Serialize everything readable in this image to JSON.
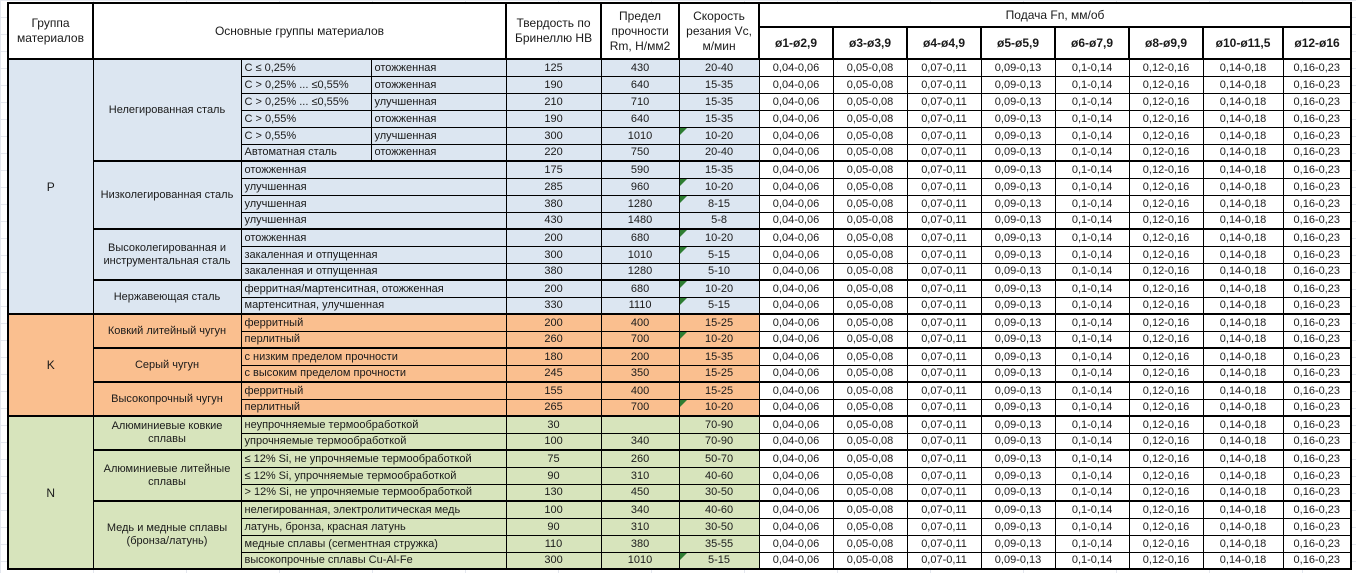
{
  "header": {
    "group": "Группа материалов",
    "material_groups": "Основные группы материалов",
    "hardness": "Твердость по Бринеллю HB",
    "strength": "Предел прочности Rm, Н/мм2",
    "speed": "Скорость резания Vc, м/мин",
    "feed": "Подача Fn, мм/об",
    "feed_columns": [
      "ø1-ø2,9",
      "ø3-ø3,9",
      "ø4-ø4,9",
      "ø5-ø5,9",
      "ø6-ø7,9",
      "ø8-ø9,9",
      "ø10-ø11,5",
      "ø12-ø16"
    ]
  },
  "feed_values": [
    "0,04-0,06",
    "0,05-0,08",
    "0,07-0,11",
    "0,09-0,13",
    "0,1-0,14",
    "0,12-0,16",
    "0,14-0,18",
    "0,16-0,23"
  ],
  "colors": {
    "P": "#DCE6F1",
    "K": "#FABF8F",
    "N": "#D7E4BC",
    "marker": "#2e7d32",
    "border": "#000000"
  },
  "sections": [
    {
      "code": "P",
      "subgroups": [
        {
          "name": "Нелегированная сталь",
          "rows": [
            {
              "c1": "C ≤ 0,25%",
              "c2": "отожженная",
              "hb": "125",
              "rm": "430",
              "vc": "20-40",
              "marker": false
            },
            {
              "c1": "C > 0,25% ... ≤0,55%",
              "c2": "отожженная",
              "hb": "190",
              "rm": "640",
              "vc": "15-35",
              "marker": false
            },
            {
              "c1": "C > 0,25% ... ≤0,55%",
              "c2": "улучшенная",
              "hb": "210",
              "rm": "710",
              "vc": "15-35",
              "marker": false
            },
            {
              "c1": "C > 0,55%",
              "c2": "отожженная",
              "hb": "190",
              "rm": "640",
              "vc": "15-35",
              "marker": false
            },
            {
              "c1": "C > 0,55%",
              "c2": "улучшенная",
              "hb": "300",
              "rm": "1010",
              "vc": "10-20",
              "marker": true
            },
            {
              "c1": "Автоматная сталь",
              "c2": "отожженная",
              "hb": "220",
              "rm": "750",
              "vc": "20-40",
              "marker": false
            }
          ]
        },
        {
          "name": "Низколегированная сталь",
          "rows": [
            {
              "c1": "отожженная",
              "hb": "175",
              "rm": "590",
              "vc": "15-35",
              "marker": false
            },
            {
              "c1": "улучшенная",
              "hb": "285",
              "rm": "960",
              "vc": "10-20",
              "marker": true
            },
            {
              "c1": "улучшенная",
              "hb": "380",
              "rm": "1280",
              "vc": "8-15",
              "marker": true
            },
            {
              "c1": "улучшенная",
              "hb": "430",
              "rm": "1480",
              "vc": "5-8",
              "marker": false
            }
          ]
        },
        {
          "name": "Высоколегированная и инструментальная сталь",
          "rows": [
            {
              "c1": "отожженная",
              "hb": "200",
              "rm": "680",
              "vc": "10-20",
              "marker": true
            },
            {
              "c1": "закаленная и отпущенная",
              "hb": "300",
              "rm": "1010",
              "vc": "5-15",
              "marker": true
            },
            {
              "c1": "закаленная и отпущенная",
              "hb": "380",
              "rm": "1280",
              "vc": "5-10",
              "marker": false
            }
          ]
        },
        {
          "name": "Нержавеющая сталь",
          "rows": [
            {
              "c1": "ферритная/мартенситная, отожженная",
              "hb": "200",
              "rm": "680",
              "vc": "10-20",
              "marker": true
            },
            {
              "c1": "мартенситная, улучшенная",
              "hb": "330",
              "rm": "1110",
              "vc": "5-15",
              "marker": true
            }
          ]
        }
      ]
    },
    {
      "code": "K",
      "subgroups": [
        {
          "name": "Ковкий литейный чугун",
          "rows": [
            {
              "c1": "ферритный",
              "hb": "200",
              "rm": "400",
              "vc": "15-25",
              "marker": false
            },
            {
              "c1": "перлитный",
              "hb": "260",
              "rm": "700",
              "vc": "10-20",
              "marker": true
            }
          ]
        },
        {
          "name": "Серый чугун",
          "rows": [
            {
              "c1": "с низким пределом прочности",
              "hb": "180",
              "rm": "200",
              "vc": "15-35",
              "marker": false
            },
            {
              "c1": "с высоким пределом прочности",
              "hb": "245",
              "rm": "350",
              "vc": "15-25",
              "marker": false
            }
          ]
        },
        {
          "name": "Высокопрочный чугун",
          "rows": [
            {
              "c1": "ферритный",
              "hb": "155",
              "rm": "400",
              "vc": "15-25",
              "marker": false
            },
            {
              "c1": "перлитный",
              "hb": "265",
              "rm": "700",
              "vc": "10-20",
              "marker": true
            }
          ]
        }
      ]
    },
    {
      "code": "N",
      "subgroups": [
        {
          "name": "Алюминиевые ковкие сплавы",
          "rows": [
            {
              "c1": "неупрочняемые термообработкой",
              "hb": "30",
              "rm": "",
              "vc": "70-90",
              "marker": false
            },
            {
              "c1": "упрочняемые термообработкой",
              "hb": "100",
              "rm": "340",
              "vc": "70-90",
              "marker": false
            }
          ]
        },
        {
          "name": "Алюминиевые литейные сплавы",
          "rows": [
            {
              "c1": "≤ 12% Si, не упрочняемые термообработкой",
              "hb": "75",
              "rm": "260",
              "vc": "50-70",
              "marker": false
            },
            {
              "c1": "≤ 12% Si, упрочняемые термообработкой",
              "hb": "90",
              "rm": "310",
              "vc": "40-60",
              "marker": false
            },
            {
              "c1": "> 12% Si, не упрочняемые термообработкой",
              "hb": "130",
              "rm": "450",
              "vc": "30-50",
              "marker": false
            }
          ]
        },
        {
          "name": "Медь и медные сплавы (бронза/латунь)",
          "rows": [
            {
              "c1": "нелегированная, электролитическая медь",
              "hb": "100",
              "rm": "340",
              "vc": "40-60",
              "marker": false
            },
            {
              "c1": "латунь, бронза, красная латунь",
              "hb": "90",
              "rm": "310",
              "vc": "30-50",
              "marker": false
            },
            {
              "c1": "медные сплавы (сегментная стружка)",
              "hb": "110",
              "rm": "380",
              "vc": "35-55",
              "marker": false
            },
            {
              "c1": "высокопрочные сплавы Cu-Al-Fe",
              "hb": "300",
              "rm": "1010",
              "vc": "5-15",
              "marker": true
            }
          ]
        }
      ]
    }
  ]
}
